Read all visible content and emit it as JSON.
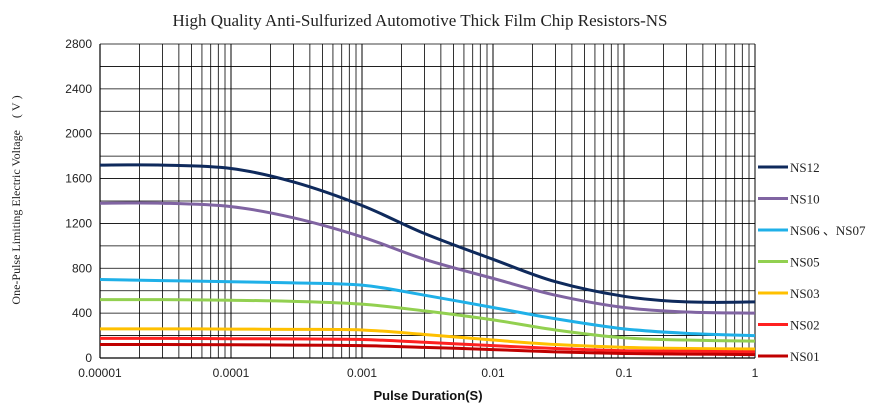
{
  "chart_data": {
    "type": "line",
    "title": "High Quality Anti-Sulfurized Automotive Thick Film Chip Resistors-NS",
    "xlabel": "Pulse Duration(S)",
    "ylabel": "One-Pulse Limiting Electric Voltage　( V )",
    "x_scale": "log",
    "xlim": [
      1e-05,
      1
    ],
    "ylim": [
      0,
      2800
    ],
    "grid": true,
    "legend_position": "right",
    "x_ticks": [
      "0.00001",
      "0.0001",
      "0.001",
      "0.01",
      "0.1",
      "1"
    ],
    "y_ticks": [
      "0",
      "400",
      "800",
      "1200",
      "1600",
      "2000",
      "2400",
      "2800"
    ],
    "series": [
      {
        "name": "NS12",
        "color": "#0f2a5c",
        "x": [
          1e-05,
          3e-05,
          0.0001,
          0.0003,
          0.001,
          0.003,
          0.01,
          0.03,
          0.1,
          0.3,
          1
        ],
        "y": [
          1720,
          1720,
          1690,
          1570,
          1360,
          1110,
          880,
          680,
          550,
          500,
          500
        ]
      },
      {
        "name": "NS10",
        "color": "#8064a2",
        "x": [
          1e-05,
          3e-05,
          0.0001,
          0.0003,
          0.001,
          0.003,
          0.01,
          0.03,
          0.1,
          0.3,
          1
        ],
        "y": [
          1380,
          1380,
          1350,
          1250,
          1080,
          880,
          710,
          560,
          450,
          410,
          400
        ]
      },
      {
        "name": "NS06 、NS07",
        "color": "#1fb0e8",
        "x": [
          1e-05,
          3e-05,
          0.0001,
          0.0003,
          0.001,
          0.003,
          0.01,
          0.03,
          0.1,
          0.3,
          1
        ],
        "y": [
          700,
          690,
          680,
          670,
          650,
          560,
          450,
          350,
          260,
          220,
          200
        ]
      },
      {
        "name": "NS05",
        "color": "#92d050",
        "x": [
          1e-05,
          3e-05,
          0.0001,
          0.0003,
          0.001,
          0.003,
          0.01,
          0.03,
          0.1,
          0.3,
          1
        ],
        "y": [
          520,
          520,
          515,
          505,
          480,
          420,
          340,
          250,
          180,
          160,
          150
        ]
      },
      {
        "name": "NS03",
        "color": "#ffc000",
        "x": [
          1e-05,
          3e-05,
          0.0001,
          0.0003,
          0.001,
          0.003,
          0.01,
          0.03,
          0.1,
          0.3,
          1
        ],
        "y": [
          260,
          260,
          258,
          255,
          250,
          210,
          160,
          120,
          95,
          85,
          80
        ]
      },
      {
        "name": "NS02",
        "color": "#ff2020",
        "x": [
          1e-05,
          3e-05,
          0.0001,
          0.0003,
          0.001,
          0.003,
          0.01,
          0.03,
          0.1,
          0.3,
          1
        ],
        "y": [
          175,
          175,
          172,
          170,
          165,
          140,
          110,
          85,
          65,
          60,
          55
        ]
      },
      {
        "name": "NS01",
        "color": "#c00000",
        "x": [
          1e-05,
          3e-05,
          0.0001,
          0.0003,
          0.001,
          0.003,
          0.01,
          0.03,
          0.1,
          0.3,
          1
        ],
        "y": [
          120,
          120,
          118,
          115,
          110,
          95,
          75,
          55,
          40,
          35,
          30
        ]
      }
    ]
  }
}
